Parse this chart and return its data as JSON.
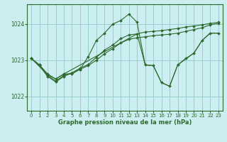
{
  "title": "Graphe pression niveau de la mer (hPa)",
  "bg_color": "#cceef0",
  "grid_color": "#99cccc",
  "line_color": "#2d6a2d",
  "marker_color": "#2d6a2d",
  "xlim": [
    -0.5,
    23.5
  ],
  "ylim": [
    1021.6,
    1024.55
  ],
  "yticks": [
    1022,
    1023,
    1024
  ],
  "xticks": [
    0,
    1,
    2,
    3,
    4,
    5,
    6,
    7,
    8,
    9,
    10,
    11,
    12,
    13,
    14,
    15,
    16,
    17,
    18,
    19,
    20,
    21,
    22,
    23
  ],
  "series": [
    {
      "x": [
        0,
        1,
        2,
        3,
        4,
        5,
        6,
        7,
        8,
        9,
        10,
        11,
        12,
        13,
        14,
        15,
        16,
        17,
        18,
        19,
        20,
        21,
        22,
        23
      ],
      "y": [
        1023.05,
        1022.87,
        1022.62,
        1022.48,
        1022.62,
        1022.62,
        1022.75,
        1023.1,
        1023.55,
        1023.75,
        1024.0,
        1024.1,
        1024.28,
        1024.05,
        1022.87,
        1022.85,
        1022.38,
        1022.28,
        1022.87,
        1023.05,
        1023.2,
        1023.55,
        1023.75,
        1023.75
      ],
      "has_markers": true
    },
    {
      "x": [
        0,
        1,
        2,
        3,
        4,
        5,
        6,
        7,
        8,
        9,
        10,
        11,
        12,
        13,
        14,
        15,
        16,
        17,
        18,
        19,
        20,
        21,
        22,
        23
      ],
      "y": [
        1023.05,
        1022.87,
        1022.58,
        1022.42,
        1022.58,
        1022.65,
        1022.78,
        1022.88,
        1023.08,
        1023.28,
        1023.42,
        1023.6,
        1023.7,
        1023.73,
        1023.78,
        1023.8,
        1023.82,
        1023.85,
        1023.88,
        1023.92,
        1023.95,
        1023.98,
        1024.02,
        1024.05
      ],
      "has_markers": true
    },
    {
      "x": [
        0,
        1,
        2,
        3,
        4,
        5,
        6,
        7,
        8,
        9,
        10,
        11,
        12,
        13,
        14,
        15,
        16,
        17,
        18,
        19,
        20,
        21,
        22,
        23
      ],
      "y": [
        1023.05,
        1022.85,
        1022.55,
        1022.4,
        1022.55,
        1022.65,
        1022.75,
        1022.85,
        1023.0,
        1023.18,
        1023.32,
        1023.48,
        1023.58,
        1023.62,
        1023.65,
        1023.68,
        1023.7,
        1023.72,
        1023.75,
        1023.8,
        1023.85,
        1023.9,
        1023.98,
        1024.02
      ],
      "has_markers": true
    },
    {
      "x": [
        0,
        2,
        3,
        4,
        13,
        14,
        15,
        16,
        17,
        18,
        20,
        21,
        22,
        23
      ],
      "y": [
        1023.05,
        1022.6,
        1022.48,
        1022.62,
        1023.73,
        1022.87,
        1022.85,
        1022.38,
        1022.28,
        1022.87,
        1023.2,
        1023.55,
        1023.75,
        1023.75
      ],
      "has_markers": false
    }
  ]
}
